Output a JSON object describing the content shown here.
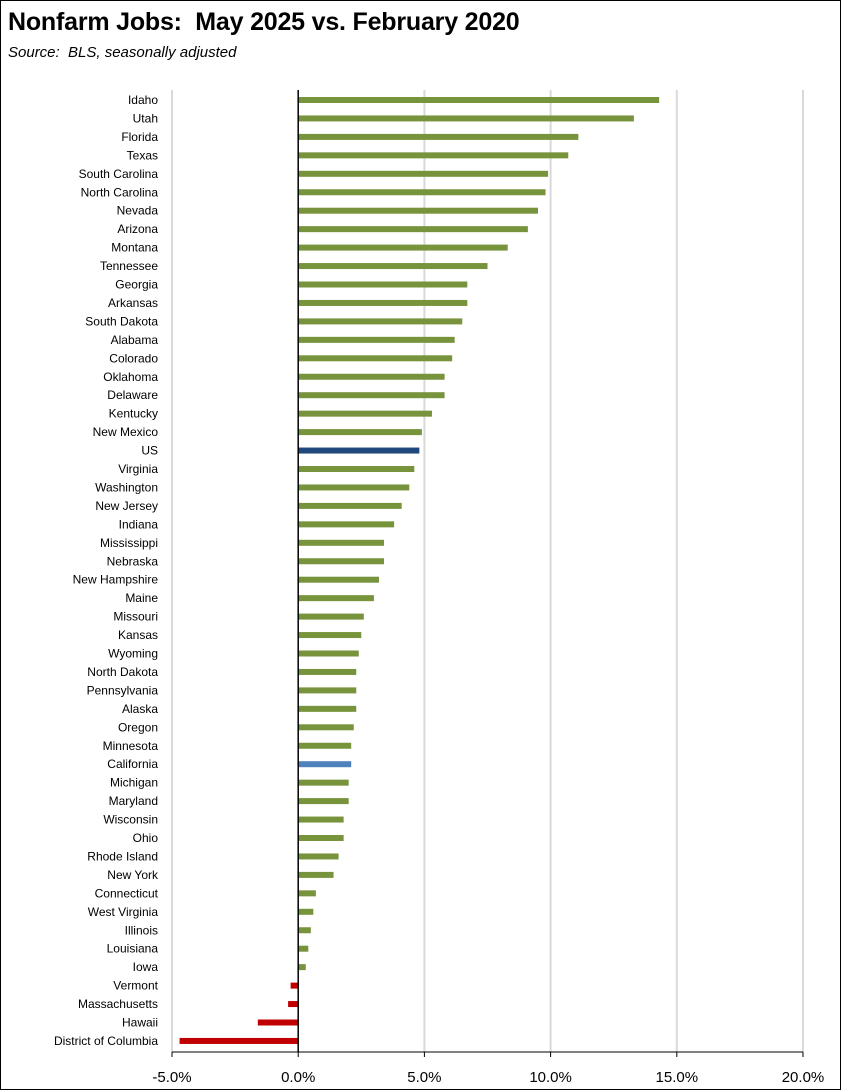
{
  "title": "Nonfarm Jobs:  May 2025 vs. February 2020",
  "subtitle": "Source:  BLS, seasonally adjusted",
  "colors": {
    "state": "#77933C",
    "us": "#1F497D",
    "california": "#4F81BD",
    "negative": "#C00000",
    "grid": "#D9D9D9",
    "axis": "#000000"
  },
  "chart_data": {
    "type": "bar",
    "orientation": "horizontal",
    "title": "Nonfarm Jobs:  May 2025 vs. February 2020",
    "subtitle": "Source:  BLS, seasonally adjusted",
    "xlim": [
      -5,
      20
    ],
    "xticks": [
      -5,
      0,
      5,
      10,
      15,
      20
    ],
    "xtick_labels": [
      "-5.0%",
      "0.0%",
      "5.0%",
      "10.0%",
      "15.0%",
      "20.0%"
    ],
    "grid": "vertical",
    "legend": "none",
    "categories": [
      "Idaho",
      "Utah",
      "Florida",
      "Texas",
      "South Carolina",
      "North Carolina",
      "Nevada",
      "Arizona",
      "Montana",
      "Tennessee",
      "Georgia",
      "Arkansas",
      "South Dakota",
      "Alabama",
      "Colorado",
      "Oklahoma",
      "Delaware",
      "Kentucky",
      "New Mexico",
      "US",
      "Virginia",
      "Washington",
      "New Jersey",
      "Indiana",
      "Mississippi",
      "Nebraska",
      "New Hampshire",
      "Maine",
      "Missouri",
      "Kansas",
      "Wyoming",
      "North Dakota",
      "Pennsylvania",
      "Alaska",
      "Oregon",
      "Minnesota",
      "California",
      "Michigan",
      "Maryland",
      "Wisconsin",
      "Ohio",
      "Rhode Island",
      "New York",
      "Connecticut",
      "West Virginia",
      "Illinois",
      "Louisiana",
      "Iowa",
      "Vermont",
      "Massachusetts",
      "Hawaii",
      "District of Columbia"
    ],
    "values": [
      14.3,
      13.3,
      11.1,
      10.7,
      9.9,
      9.8,
      9.5,
      9.1,
      8.3,
      7.5,
      6.7,
      6.7,
      6.5,
      6.2,
      6.1,
      5.8,
      5.8,
      5.3,
      4.9,
      4.8,
      4.6,
      4.4,
      4.1,
      3.8,
      3.4,
      3.4,
      3.2,
      3.0,
      2.6,
      2.5,
      2.4,
      2.3,
      2.3,
      2.3,
      2.2,
      2.1,
      2.1,
      2.0,
      2.0,
      1.8,
      1.8,
      1.6,
      1.4,
      0.7,
      0.6,
      0.5,
      0.4,
      0.3,
      -0.3,
      -0.4,
      -1.6,
      -4.7
    ]
  }
}
